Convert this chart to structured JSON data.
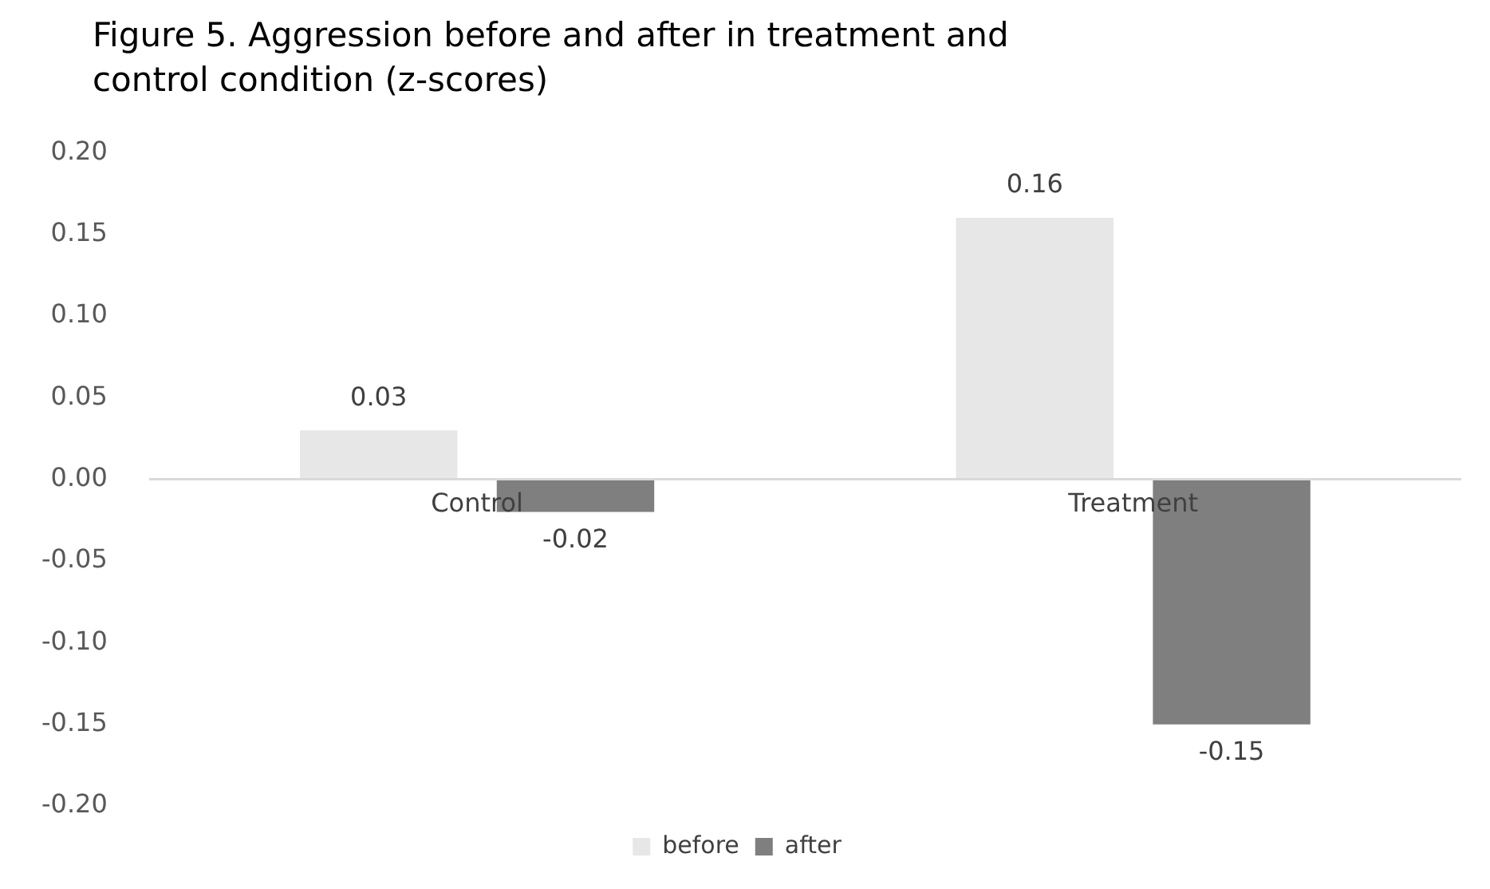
{
  "chart_data": {
    "type": "bar",
    "title": "Figure 5. Aggression before and after in treatment and control condition (z-scores)",
    "categories": [
      "Control",
      "Treatment"
    ],
    "series": [
      {
        "name": "before",
        "color": "#e7e7e7",
        "values": [
          0.03,
          0.16
        ]
      },
      {
        "name": "after",
        "color": "#7f7f7f",
        "values": [
          -0.02,
          -0.15
        ]
      }
    ],
    "ylim": [
      -0.2,
      0.2
    ],
    "yticks": [
      {
        "value": -0.2,
        "label": "-0.20"
      },
      {
        "value": -0.15,
        "label": "-0.15"
      },
      {
        "value": -0.1,
        "label": "-0.10"
      },
      {
        "value": -0.05,
        "label": "-0.05"
      },
      {
        "value": 0,
        "label": "0.00"
      },
      {
        "value": 0.05,
        "label": "0.05"
      },
      {
        "value": 0.1,
        "label": "0.10"
      },
      {
        "value": 0.15,
        "label": "0.15"
      },
      {
        "value": 0.2,
        "label": "0.20"
      }
    ],
    "grid": false,
    "legend": "bottom",
    "data_labels": true
  }
}
